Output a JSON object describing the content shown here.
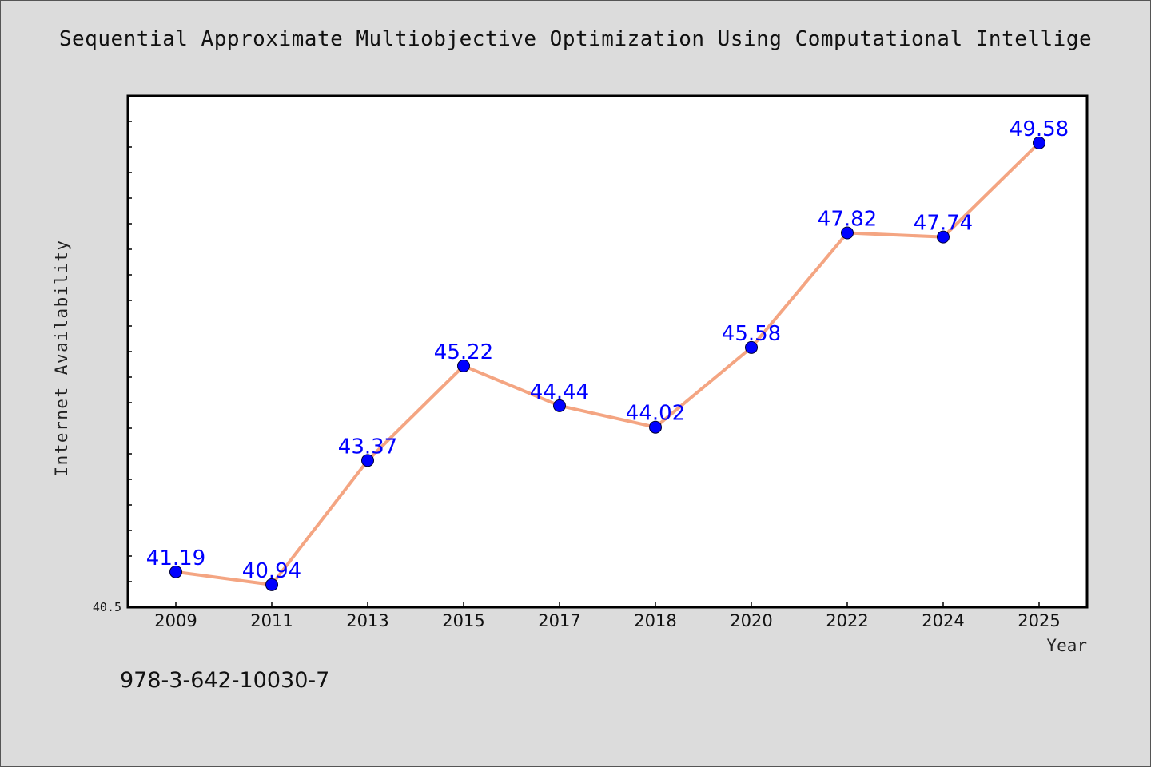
{
  "chart_data": {
    "type": "line",
    "title": "Sequential Approximate Multiobjective Optimization Using Computational Intellige",
    "xlabel": "Year",
    "ylabel": "Internet Availability",
    "categories": [
      "2009",
      "2011",
      "2013",
      "2015",
      "2017",
      "2018",
      "2020",
      "2022",
      "2024",
      "2025"
    ],
    "series": [
      {
        "values": [
          41.19,
          40.94,
          43.37,
          45.22,
          44.44,
          44.02,
          45.58,
          47.82,
          47.74,
          49.58
        ]
      }
    ],
    "data_labels": [
      "41.19",
      "40.94",
      "43.37",
      "45.22",
      "44.44",
      "44.02",
      "45.58",
      "47.82",
      "47.74",
      "49.58"
    ],
    "ylim": [
      40.5,
      50.5
    ],
    "y_tick_labels": [
      "40.5"
    ],
    "grid": false,
    "line_color": "#f4a582",
    "marker_color": "#0000ff",
    "label_color": "#0000ff",
    "plot_background": "#ffffff",
    "figure_background": "#dcdcdc"
  },
  "footer": {
    "isbn": "978-3-642-10030-7"
  }
}
